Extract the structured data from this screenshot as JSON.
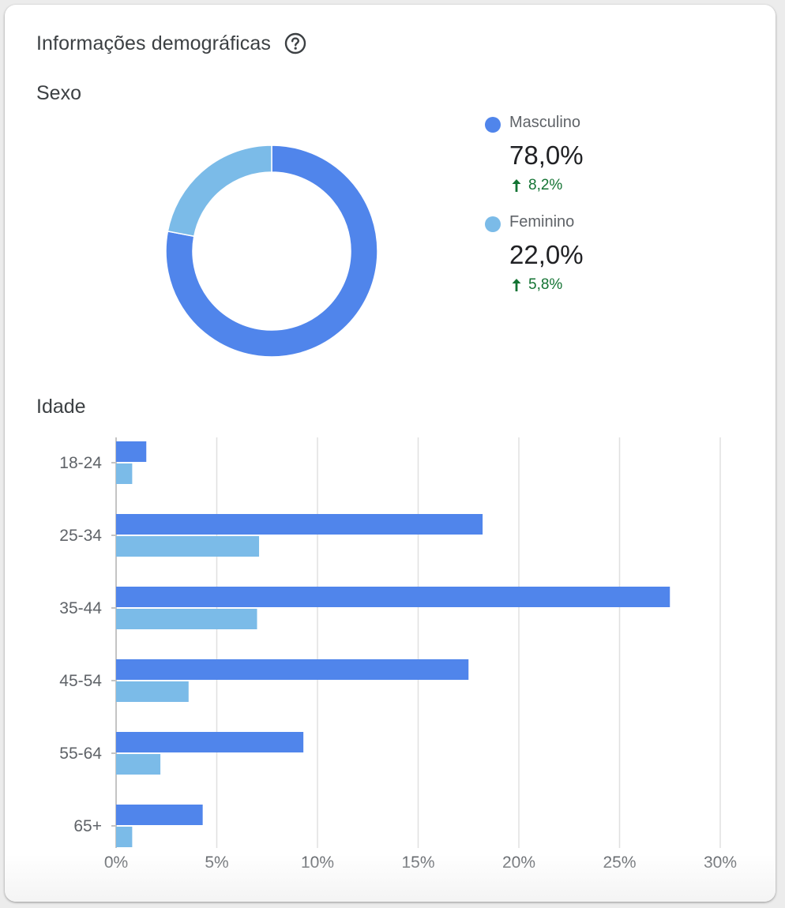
{
  "card": {
    "title": "Informações demográficas",
    "help_icon": "help-circle-icon"
  },
  "gender": {
    "title": "Sexo",
    "items": [
      {
        "name": "Masculino",
        "value": "78,0%",
        "change": "8,2%",
        "trend_icon": "arrow-up-icon",
        "color": "#5085eb"
      },
      {
        "name": "Feminino",
        "value": "22,0%",
        "change": "5,8%",
        "trend_icon": "arrow-up-icon",
        "color": "#7bbbe8"
      }
    ]
  },
  "age": {
    "title": "Idade"
  },
  "chart_data": [
    {
      "type": "pie",
      "title": "Sexo",
      "categories": [
        "Masculino",
        "Feminino"
      ],
      "values": [
        78.0,
        22.0
      ],
      "colors": [
        "#5085eb",
        "#7bbbe8"
      ],
      "donut": true
    },
    {
      "type": "bar",
      "orientation": "horizontal",
      "title": "Idade",
      "categories": [
        "18-24",
        "25-34",
        "35-44",
        "45-54",
        "55-64",
        "65+"
      ],
      "series": [
        {
          "name": "Masculino",
          "color": "#5085eb",
          "values": [
            1.5,
            18.2,
            27.5,
            17.5,
            9.3,
            4.3
          ]
        },
        {
          "name": "Feminino",
          "color": "#7bbbe8",
          "values": [
            0.8,
            7.1,
            7.0,
            3.6,
            2.2,
            0.8
          ]
        }
      ],
      "xlim": [
        0,
        30
      ],
      "x_ticks": [
        "0%",
        "5%",
        "10%",
        "15%",
        "20%",
        "25%",
        "30%"
      ],
      "grid": true,
      "legend": "none"
    }
  ]
}
